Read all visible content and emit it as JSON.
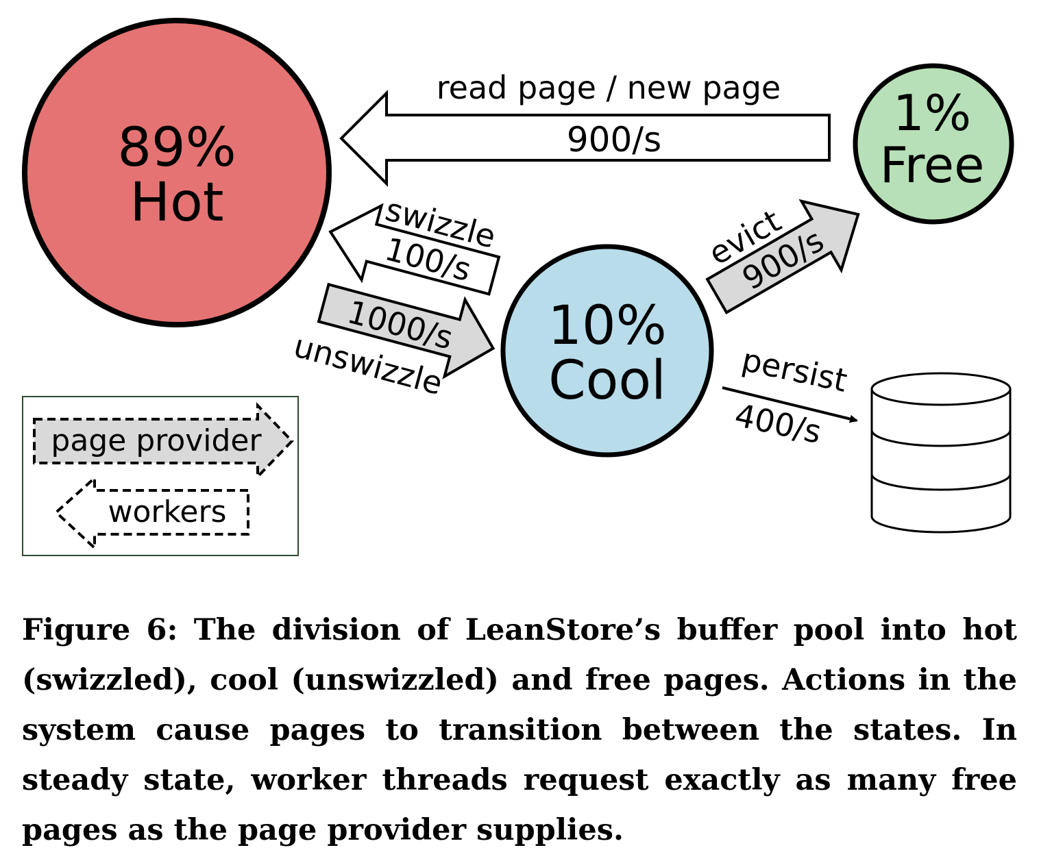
{
  "states": {
    "hot": {
      "percent": "89%",
      "label": "Hot",
      "color": "#e57373"
    },
    "free": {
      "percent": "1%",
      "label": "Free",
      "color": "#b8e0b8"
    },
    "cool": {
      "percent": "10%",
      "label": "Cool",
      "color": "#b8dcea"
    }
  },
  "transitions": {
    "read_new": {
      "label": "read page / new page",
      "rate": "900/s"
    },
    "swizzle": {
      "label": "swizzle",
      "rate": "100/s"
    },
    "unswizzle": {
      "label": "unswizzle",
      "rate": "1000/s"
    },
    "evict": {
      "label": "evict",
      "rate": "900/s"
    },
    "persist": {
      "label": "persist",
      "rate": "400/s"
    }
  },
  "legend": {
    "page_provider": "page provider",
    "workers": "workers"
  },
  "colors": {
    "provider_arrow_fill": "#d9d9d9",
    "worker_arrow_fill": "#ffffff",
    "legend_border": "#2e4a2e"
  },
  "caption": {
    "figure_label": "Figure 6:",
    "text": "The division of LeanStore’s buffer pool into hot (swizzled), cool (unswizzled) and free pages. Actions in the system cause pages to transition between the states. In steady state, worker threads request exactly as many free pages as the page provider supplies."
  }
}
